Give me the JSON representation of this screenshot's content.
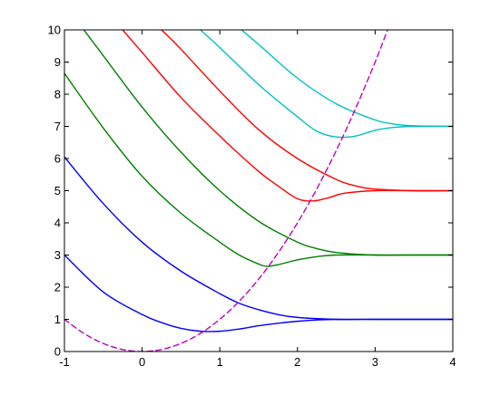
{
  "chart_data": {
    "type": "line",
    "title": "",
    "xlabel": "",
    "ylabel": "",
    "xlim": [
      -1,
      4
    ],
    "ylim": [
      0,
      10
    ],
    "grid": false,
    "legend": "none",
    "x_ticks": [
      "-1",
      "0",
      "1",
      "2",
      "3",
      "4"
    ],
    "y_ticks": [
      "0",
      "1",
      "2",
      "3",
      "4",
      "5",
      "6",
      "7",
      "8",
      "9",
      "10"
    ],
    "series": [
      {
        "color": "#0000ff",
        "dashed": false,
        "x": [
          -1,
          -0.5,
          0,
          0.25,
          0.5,
          0.75,
          1.0,
          1.25,
          1.5,
          1.75,
          2.0,
          2.25,
          2.5,
          3.0,
          3.5,
          4.0
        ],
        "y": [
          3.0,
          1.85,
          1.15,
          0.9,
          0.72,
          0.63,
          0.63,
          0.7,
          0.8,
          0.88,
          0.94,
          0.98,
          1.0,
          1.0,
          1.0,
          1.0
        ]
      },
      {
        "color": "#0000ff",
        "dashed": false,
        "x": [
          -1,
          -0.5,
          0,
          0.5,
          1.0,
          1.25,
          1.5,
          1.75,
          2.0,
          2.5,
          3.0,
          3.5,
          4.0
        ],
        "y": [
          6.05,
          4.6,
          3.4,
          2.5,
          1.8,
          1.5,
          1.3,
          1.15,
          1.06,
          1.0,
          1.0,
          1.0,
          1.0
        ]
      },
      {
        "color": "#008000",
        "dashed": false,
        "x": [
          -1,
          -0.5,
          0,
          0.5,
          1.0,
          1.25,
          1.5,
          1.6,
          1.75,
          2.0,
          2.25,
          2.5,
          3.0,
          3.5,
          4.0
        ],
        "y": [
          8.65,
          6.95,
          5.45,
          4.3,
          3.4,
          3.0,
          2.72,
          2.65,
          2.7,
          2.85,
          2.95,
          3.0,
          3.0,
          3.0,
          3.0
        ]
      },
      {
        "color": "#008000",
        "dashed": false,
        "x": [
          -0.75,
          -0.5,
          0,
          0.5,
          1.0,
          1.5,
          2.0,
          2.25,
          2.5,
          3.0,
          3.5,
          4.0
        ],
        "y": [
          10.0,
          9.2,
          7.6,
          6.2,
          5.0,
          4.05,
          3.4,
          3.2,
          3.08,
          3.0,
          3.0,
          3.0
        ]
      },
      {
        "color": "#ff0000",
        "dashed": false,
        "x": [
          -0.25,
          0,
          0.5,
          1.0,
          1.5,
          1.75,
          2.0,
          2.2,
          2.4,
          2.6,
          3.0,
          3.5,
          4.0
        ],
        "y": [
          10.0,
          9.3,
          7.9,
          6.7,
          5.6,
          5.15,
          4.75,
          4.68,
          4.78,
          4.92,
          5.0,
          5.0,
          5.0
        ]
      },
      {
        "color": "#ff0000",
        "dashed": false,
        "x": [
          0.25,
          0.5,
          1.0,
          1.5,
          2.0,
          2.5,
          2.75,
          3.0,
          3.5,
          4.0
        ],
        "y": [
          10.0,
          9.4,
          8.1,
          6.9,
          6.0,
          5.35,
          5.15,
          5.05,
          5.0,
          5.0
        ]
      },
      {
        "color": "#00bfbf",
        "dashed": false,
        "x": [
          0.75,
          1.0,
          1.5,
          2.0,
          2.25,
          2.5,
          2.75,
          3.0,
          3.25,
          3.5,
          4.0
        ],
        "y": [
          10.0,
          9.45,
          8.3,
          7.3,
          6.85,
          6.67,
          6.7,
          6.88,
          6.97,
          7.0,
          7.0
        ]
      },
      {
        "color": "#00bfbf",
        "dashed": false,
        "x": [
          1.28,
          1.5,
          2.0,
          2.5,
          3.0,
          3.25,
          3.5,
          4.0
        ],
        "y": [
          10.0,
          9.55,
          8.5,
          7.7,
          7.2,
          7.07,
          7.02,
          7.0
        ]
      },
      {
        "color": "#bf00bf",
        "dashed": true,
        "x": [
          -1,
          -0.75,
          -0.5,
          -0.25,
          0,
          0.25,
          0.5,
          0.75,
          1.0,
          1.25,
          1.5,
          1.75,
          2.0,
          2.25,
          2.5,
          2.75,
          3.0,
          3.16
        ],
        "y": [
          1.0,
          0.5625,
          0.25,
          0.0625,
          0,
          0.0625,
          0.25,
          0.5625,
          1.0,
          1.5625,
          2.25,
          3.0625,
          4.0,
          5.0625,
          6.25,
          7.5625,
          9.0,
          10.0
        ]
      }
    ]
  }
}
